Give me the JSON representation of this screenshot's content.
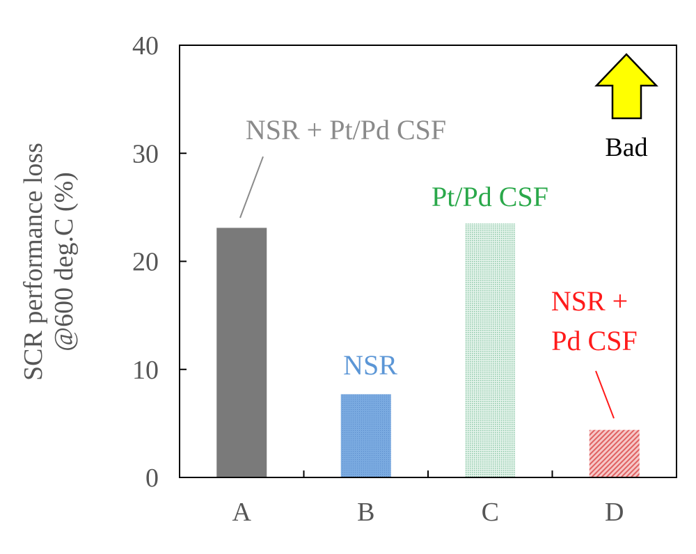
{
  "chart_data": {
    "type": "bar",
    "categories": [
      "A",
      "B",
      "C",
      "D"
    ],
    "values": [
      23.1,
      7.7,
      23.5,
      4.4
    ],
    "ylabel_line1": "SCR performance loss",
    "ylabel_line2": "@600 deg.C (%)",
    "xlabel": "",
    "ylim": [
      0,
      40
    ],
    "yticks": [
      "0",
      "10",
      "20",
      "30",
      "40"
    ],
    "grid": false,
    "bar_colors": [
      "#7a7a7a",
      "#6fa0d8",
      "#a8d8c0",
      "#e88080"
    ],
    "annotations": [
      {
        "text": "NSR + Pt/Pd CSF",
        "color": "#8a8a8a"
      },
      {
        "text": "NSR",
        "color": "#5b96d6"
      },
      {
        "text": "Pt/Pd CSF",
        "color": "#2aa84a"
      },
      {
        "text": "NSR +",
        "color": "#ff1a1a"
      },
      {
        "text": "Pd CSF",
        "color": "#ff1a1a"
      }
    ],
    "indicator": {
      "text": "Bad",
      "arrow_color": "#ffff00"
    }
  }
}
